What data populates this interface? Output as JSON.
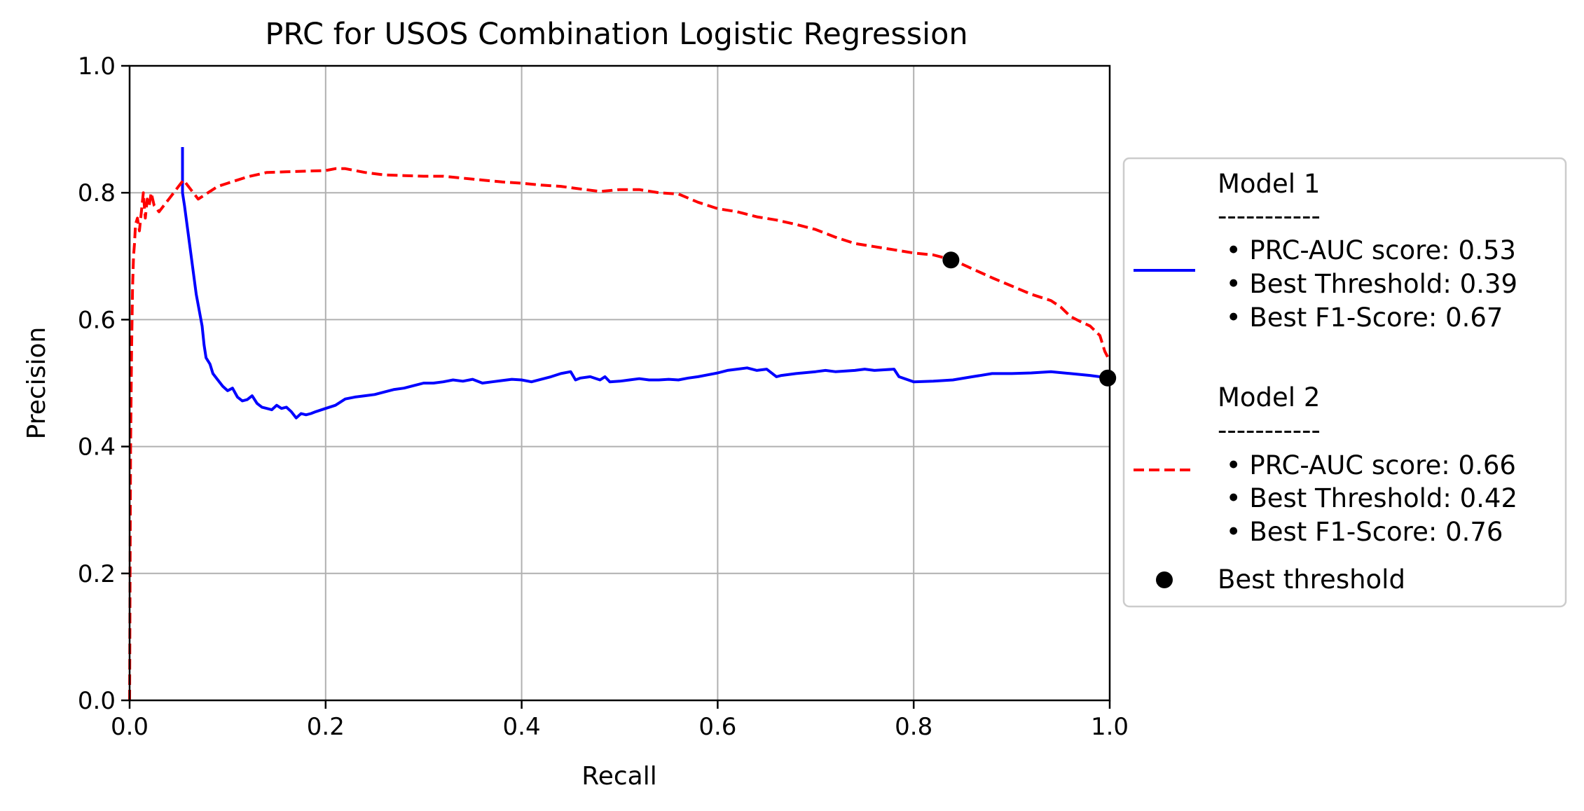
{
  "chart_data": {
    "type": "line",
    "title": "PRC for USOS Combination Logistic Regression",
    "xlabel": "Recall",
    "ylabel": "Precision",
    "xlim": [
      0.0,
      1.0
    ],
    "ylim": [
      0.0,
      1.0
    ],
    "xticks": [
      "0.0",
      "0.2",
      "0.4",
      "0.6",
      "0.8",
      "1.0"
    ],
    "yticks": [
      "0.0",
      "0.2",
      "0.4",
      "0.6",
      "0.8",
      "1.0"
    ],
    "grid": true,
    "legend_position": "center-right-outside",
    "series": [
      {
        "name": "Model 1",
        "color": "#0000ff",
        "style": "solid",
        "legend_lines": [
          "Model 1",
          "-----------",
          " • PRC-AUC score: 0.53",
          " • Best Threshold: 0.39",
          " • Best F1-Score: 0.67"
        ],
        "x": [
          0.054,
          0.054,
          0.056,
          0.062,
          0.068,
          0.074,
          0.076,
          0.078,
          0.082,
          0.085,
          0.09,
          0.095,
          0.1,
          0.105,
          0.11,
          0.115,
          0.12,
          0.125,
          0.13,
          0.135,
          0.14,
          0.145,
          0.15,
          0.155,
          0.16,
          0.165,
          0.17,
          0.175,
          0.18,
          0.185,
          0.19,
          0.2,
          0.21,
          0.22,
          0.23,
          0.24,
          0.25,
          0.26,
          0.27,
          0.28,
          0.29,
          0.3,
          0.31,
          0.32,
          0.33,
          0.34,
          0.35,
          0.36,
          0.37,
          0.38,
          0.39,
          0.4,
          0.41,
          0.42,
          0.43,
          0.44,
          0.45,
          0.455,
          0.46,
          0.47,
          0.48,
          0.485,
          0.49,
          0.5,
          0.51,
          0.52,
          0.53,
          0.54,
          0.55,
          0.56,
          0.57,
          0.58,
          0.59,
          0.6,
          0.61,
          0.62,
          0.63,
          0.64,
          0.65,
          0.66,
          0.665,
          0.68,
          0.7,
          0.71,
          0.72,
          0.74,
          0.75,
          0.76,
          0.77,
          0.78,
          0.785,
          0.8,
          0.82,
          0.84,
          0.86,
          0.88,
          0.9,
          0.92,
          0.94,
          0.96,
          0.98,
          1.0
        ],
        "y": [
          0.872,
          0.8,
          0.78,
          0.71,
          0.64,
          0.59,
          0.56,
          0.54,
          0.53,
          0.515,
          0.505,
          0.495,
          0.488,
          0.492,
          0.478,
          0.472,
          0.474,
          0.48,
          0.468,
          0.462,
          0.46,
          0.458,
          0.465,
          0.46,
          0.462,
          0.455,
          0.445,
          0.452,
          0.45,
          0.452,
          0.455,
          0.46,
          0.465,
          0.475,
          0.478,
          0.48,
          0.482,
          0.486,
          0.49,
          0.492,
          0.496,
          0.5,
          0.5,
          0.502,
          0.505,
          0.503,
          0.506,
          0.5,
          0.502,
          0.504,
          0.506,
          0.505,
          0.502,
          0.506,
          0.51,
          0.515,
          0.518,
          0.505,
          0.508,
          0.51,
          0.505,
          0.51,
          0.502,
          0.503,
          0.505,
          0.507,
          0.505,
          0.505,
          0.506,
          0.505,
          0.508,
          0.51,
          0.513,
          0.516,
          0.52,
          0.522,
          0.524,
          0.52,
          0.522,
          0.51,
          0.512,
          0.515,
          0.518,
          0.52,
          0.518,
          0.52,
          0.522,
          0.52,
          0.521,
          0.522,
          0.51,
          0.502,
          0.503,
          0.505,
          0.51,
          0.515,
          0.515,
          0.516,
          0.518,
          0.515,
          0.512,
          0.508
        ]
      },
      {
        "name": "Model 2",
        "color": "#ff0000",
        "style": "dashed",
        "legend_lines": [
          "Model 2",
          "-----------",
          " • PRC-AUC score: 0.66",
          " • Best Threshold: 0.42",
          " • Best F1-Score: 0.76"
        ],
        "x": [
          0.0,
          0.001,
          0.002,
          0.003,
          0.004,
          0.005,
          0.006,
          0.008,
          0.01,
          0.012,
          0.014,
          0.016,
          0.018,
          0.02,
          0.022,
          0.025,
          0.03,
          0.035,
          0.04,
          0.045,
          0.05,
          0.055,
          0.06,
          0.065,
          0.07,
          0.08,
          0.09,
          0.1,
          0.12,
          0.14,
          0.16,
          0.18,
          0.2,
          0.21,
          0.22,
          0.24,
          0.26,
          0.28,
          0.3,
          0.32,
          0.34,
          0.36,
          0.38,
          0.4,
          0.42,
          0.44,
          0.46,
          0.48,
          0.5,
          0.52,
          0.54,
          0.56,
          0.58,
          0.6,
          0.62,
          0.64,
          0.66,
          0.68,
          0.7,
          0.72,
          0.74,
          0.76,
          0.78,
          0.8,
          0.82,
          0.84,
          0.86,
          0.88,
          0.9,
          0.92,
          0.94,
          0.95,
          0.96,
          0.97,
          0.98,
          0.99,
          0.995,
          1.0
        ],
        "y": [
          0.0,
          0.4,
          0.55,
          0.65,
          0.7,
          0.72,
          0.75,
          0.76,
          0.74,
          0.77,
          0.8,
          0.76,
          0.79,
          0.78,
          0.8,
          0.78,
          0.77,
          0.78,
          0.79,
          0.8,
          0.81,
          0.82,
          0.81,
          0.8,
          0.79,
          0.8,
          0.81,
          0.815,
          0.825,
          0.832,
          0.833,
          0.834,
          0.835,
          0.838,
          0.838,
          0.832,
          0.828,
          0.827,
          0.826,
          0.826,
          0.823,
          0.82,
          0.817,
          0.815,
          0.812,
          0.81,
          0.806,
          0.802,
          0.805,
          0.805,
          0.8,
          0.798,
          0.785,
          0.775,
          0.77,
          0.762,
          0.757,
          0.75,
          0.742,
          0.73,
          0.72,
          0.715,
          0.71,
          0.705,
          0.702,
          0.694,
          0.68,
          0.666,
          0.653,
          0.64,
          0.63,
          0.62,
          0.605,
          0.597,
          0.59,
          0.575,
          0.55,
          0.535
        ]
      }
    ],
    "markers": {
      "name": "Best threshold",
      "color": "#000000",
      "points": [
        {
          "x": 0.838,
          "y": 0.694
        },
        {
          "x": 0.998,
          "y": 0.508
        }
      ]
    }
  }
}
